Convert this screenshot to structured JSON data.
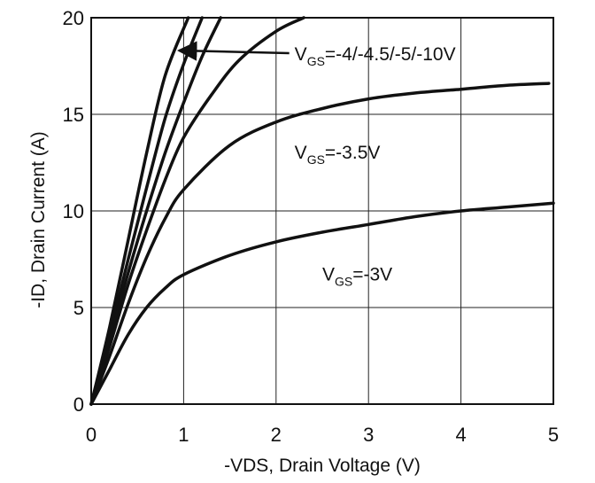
{
  "chart_data": {
    "type": "line",
    "title": "",
    "xlabel": "-VDS, Drain Voltage (V)",
    "ylabel": "-ID, Drain Current (A)",
    "xlim": [
      0,
      5
    ],
    "ylim": [
      0,
      20
    ],
    "x_ticks": [
      0,
      1,
      2,
      3,
      4,
      5
    ],
    "y_ticks": [
      0,
      5,
      10,
      15,
      20
    ],
    "x_tick_labels": [
      "0",
      "1",
      "2",
      "3",
      "4",
      "5"
    ],
    "y_tick_labels": [
      "0",
      "5",
      "10",
      "15",
      "20"
    ],
    "grid": true,
    "series": [
      {
        "x": [
          0,
          0.2,
          0.4,
          0.6,
          0.8,
          1.05
        ],
        "y": [
          0,
          4.0,
          8.5,
          13.0,
          17.0,
          20.0
        ]
      },
      {
        "x": [
          0,
          0.2,
          0.4,
          0.6,
          0.8,
          1.0,
          1.2
        ],
        "y": [
          0,
          3.6,
          7.5,
          11.2,
          14.8,
          17.6,
          20.0
        ]
      },
      {
        "x": [
          0,
          0.2,
          0.4,
          0.6,
          0.8,
          1.0,
          1.2,
          1.4
        ],
        "y": [
          0,
          3.3,
          6.8,
          10.0,
          13.0,
          15.6,
          18.0,
          20.0
        ]
      },
      {
        "x": [
          0,
          0.2,
          0.4,
          0.6,
          0.8,
          1.0,
          1.3,
          1.6,
          2.0,
          2.3
        ],
        "y": [
          0,
          3.0,
          6.2,
          9.0,
          11.6,
          13.8,
          16.0,
          17.8,
          19.3,
          20.0
        ]
      },
      {
        "x": [
          0,
          0.2,
          0.4,
          0.6,
          0.8,
          1.0,
          1.5,
          2.0,
          2.5,
          3.0,
          3.5,
          4.0,
          4.5,
          4.95
        ],
        "y": [
          0,
          2.5,
          5.2,
          7.6,
          9.6,
          11.1,
          13.4,
          14.6,
          15.3,
          15.8,
          16.1,
          16.3,
          16.5,
          16.6
        ]
      },
      {
        "x": [
          0,
          0.2,
          0.4,
          0.6,
          0.8,
          1.0,
          1.5,
          2.0,
          2.5,
          3.0,
          3.5,
          4.0,
          4.5,
          5.0
        ],
        "y": [
          0,
          1.8,
          3.6,
          5.0,
          6.0,
          6.7,
          7.7,
          8.4,
          8.9,
          9.3,
          9.7,
          10.0,
          10.2,
          10.4
        ]
      }
    ],
    "annotations": [
      {
        "text_main": "V",
        "text_sub": "GS",
        "text_rest": "=-4/-4.5/-5/-10V",
        "x": 2.2,
        "y": 17.8,
        "arrow_to": [
          0.95,
          18.3
        ]
      },
      {
        "text_main": "V",
        "text_sub": "GS",
        "text_rest": "=-3.5V",
        "x": 2.2,
        "y": 12.7
      },
      {
        "text_main": "V",
        "text_sub": "GS",
        "text_rest": "=-3V",
        "x": 2.5,
        "y": 6.4
      }
    ]
  }
}
